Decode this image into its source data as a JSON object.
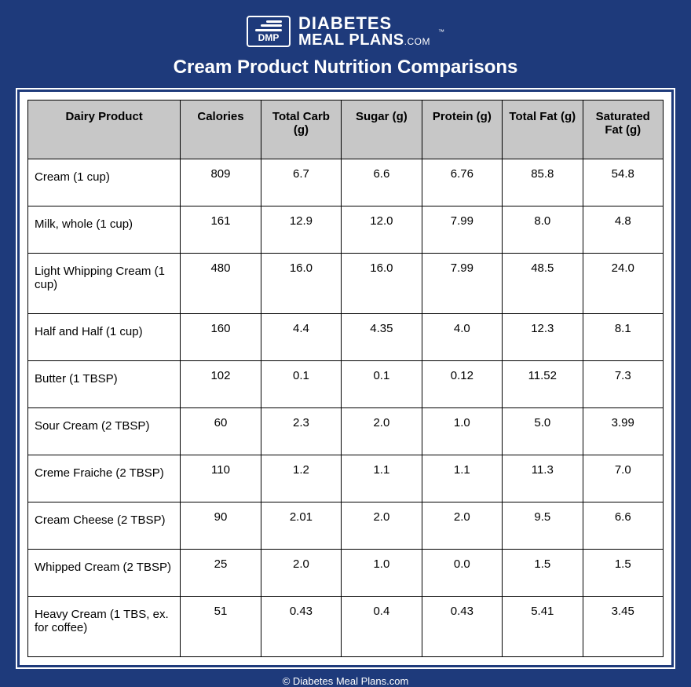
{
  "brand": {
    "badge_text": "DMP",
    "line1": "DIABETES",
    "line2": "MEAL PLANS",
    "dotcom": ".COM",
    "tm": "™"
  },
  "title": "Cream Product Nutrition Comparisons",
  "footer": "© Diabetes Meal Plans.com",
  "columns": [
    "Dairy Product",
    "Calories",
    "Total Carb (g)",
    "Sugar (g)",
    "Protein (g)",
    "Total Fat (g)",
    "Saturated Fat (g)"
  ],
  "rows": [
    {
      "product": " Cream (1 cup)",
      "calories": "809",
      "carb": "6.7",
      "sugar": "6.6",
      "protein": "6.76",
      "fat": "85.8",
      "satfat": "54.8"
    },
    {
      "product": "Milk, whole (1 cup)",
      "calories": "161",
      "carb": "12.9",
      "sugar": "12.0",
      "protein": "7.99",
      "fat": "8.0",
      "satfat": "4.8"
    },
    {
      "product": "Light Whipping Cream (1 cup)",
      "calories": "480",
      "carb": "16.0",
      "sugar": "16.0",
      "protein": "7.99",
      "fat": "48.5",
      "satfat": "24.0"
    },
    {
      "product": "Half and Half (1 cup)",
      "calories": "160",
      "carb": "4.4",
      "sugar": "4.35",
      "protein": "4.0",
      "fat": "12.3",
      "satfat": "8.1"
    },
    {
      "product": "Butter (1 TBSP)",
      "calories": "102",
      "carb": "0.1",
      "sugar": "0.1",
      "protein": "0.12",
      "fat": "11.52",
      "satfat": "7.3"
    },
    {
      "product": "Sour Cream (2 TBSP)",
      "calories": "60",
      "carb": "2.3",
      "sugar": "2.0",
      "protein": "1.0",
      "fat": "5.0",
      "satfat": "3.99"
    },
    {
      "product": "Creme Fraiche (2 TBSP)",
      "calories": "110",
      "carb": "1.2",
      "sugar": "1.1",
      "protein": "1.1",
      "fat": "11.3",
      "satfat": "7.0"
    },
    {
      "product": "Cream Cheese (2 TBSP)",
      "calories": "90",
      "carb": "2.01",
      "sugar": "2.0",
      "protein": "2.0",
      "fat": "9.5",
      "satfat": "6.6"
    },
    {
      "product": "Whipped Cream (2 TBSP)",
      "calories": "25",
      "carb": "2.0",
      "sugar": "1.0",
      "protein": "0.0",
      "fat": "1.5",
      "satfat": "1.5"
    },
    {
      "product": "Heavy Cream (1 TBS, ex. for coffee)",
      "calories": "51",
      "carb": "0.43",
      "sugar": "0.4",
      "protein": "0.43",
      "fat": "5.41",
      "satfat": "3.45"
    }
  ],
  "colors": {
    "page_bg": "#1e3a7b",
    "header_bg": "#c7c7c7",
    "border": "#000000",
    "text_on_dark": "#ffffff"
  }
}
